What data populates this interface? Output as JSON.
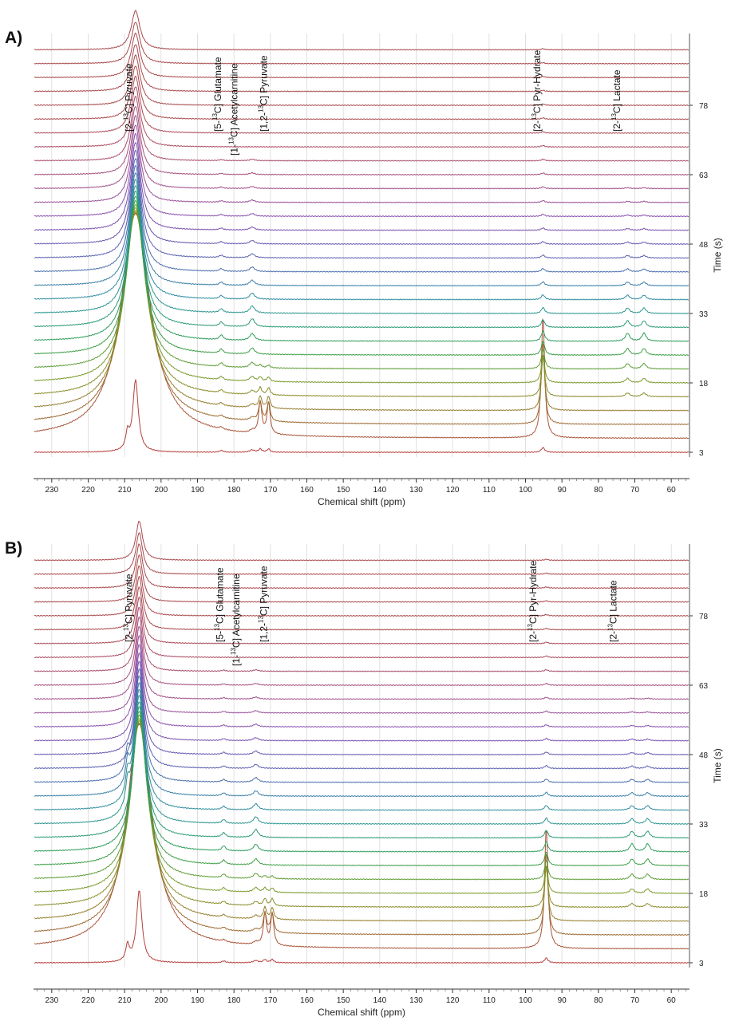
{
  "chart_data": [
    {
      "type": "line",
      "panel_label": "A)",
      "xlabel": "Chemical shift (ppm)",
      "ylabel": "Time (s)",
      "xlim": [
        235,
        55
      ],
      "x_reversed": true,
      "x_ticks": [
        230,
        220,
        210,
        200,
        190,
        180,
        170,
        160,
        150,
        140,
        130,
        120,
        110,
        100,
        90,
        80,
        70,
        60
      ],
      "y_ticks": [
        3,
        18,
        33,
        48,
        63,
        78
      ],
      "time_points_s": [
        3,
        6,
        9,
        12,
        15,
        18,
        21,
        24,
        27,
        30,
        33,
        36,
        39,
        42,
        45,
        48,
        51,
        54,
        57,
        60,
        63,
        66,
        69,
        72,
        75,
        78,
        81,
        84,
        87,
        90
      ],
      "grid": true,
      "annotations": [
        {
          "pre": "[2-",
          "sup": "13",
          "post": "C] Pyruvate",
          "ppm": 208
        },
        {
          "pre": "[5-",
          "sup": "13",
          "post": "C] Glutamate",
          "ppm": 183.5
        },
        {
          "pre": "[1-",
          "sup": "13",
          "post": "C] Acetylcarnitine",
          "ppm": 179
        },
        {
          "pre": "[1,2-",
          "sup": "13",
          "post": "C] Pyruvate",
          "ppm": 171
        },
        {
          "pre": "[2-",
          "sup": "13",
          "post": "C] Pyr-Hydrate",
          "ppm": 96
        },
        {
          "pre": "[2-",
          "sup": "13",
          "post": "C] Lactate",
          "ppm": 74
        }
      ],
      "peaks_ppm": {
        "pyruvate": 207,
        "pyruvate_shoulder": 209.2,
        "glutamate": 183.5,
        "acetylcarnitine": 175,
        "pyruvate_1_2_a": 172.8,
        "pyruvate_1_2_b": 170.5,
        "pyr_hydrate": 95.2,
        "lactate_a": 72,
        "lactate_b": 67.5
      },
      "colors": [
        "#b5403d",
        "#a8553a",
        "#9e6a32",
        "#957e2e",
        "#8a8d2a",
        "#7a9a2c",
        "#5d9d36",
        "#3e9f46",
        "#2f9d5c",
        "#2b9a77",
        "#2b958f",
        "#2f8c9f",
        "#3a7fa7",
        "#4a6fae",
        "#5a60b0",
        "#6a56b0",
        "#7a52b0",
        "#8a50ae",
        "#985099",
        "#a0508a",
        "#a64f7c",
        "#a94d6e",
        "#aa4b62",
        "#aa4a56",
        "#a8494c"
      ]
    },
    {
      "type": "line",
      "panel_label": "B)",
      "xlabel": "Chemical shift (ppm)",
      "ylabel": "Time (s)",
      "xlim": [
        235,
        55
      ],
      "x_reversed": true,
      "x_ticks": [
        230,
        220,
        210,
        200,
        190,
        180,
        170,
        160,
        150,
        140,
        130,
        120,
        110,
        100,
        90,
        80,
        70,
        60
      ],
      "y_ticks": [
        3,
        18,
        33,
        48,
        63,
        78
      ],
      "time_points_s": [
        3,
        6,
        9,
        12,
        15,
        18,
        21,
        24,
        27,
        30,
        33,
        36,
        39,
        42,
        45,
        48,
        51,
        54,
        57,
        60,
        63,
        66,
        69,
        72,
        75,
        78,
        81,
        84,
        87,
        90
      ],
      "grid": true,
      "annotations": [
        {
          "pre": "[2-",
          "sup": "13",
          "post": "C] Pyruvate",
          "ppm": 208
        },
        {
          "pre": "[5-",
          "sup": "13",
          "post": "C] Glutamate",
          "ppm": 183
        },
        {
          "pre": "[1-",
          "sup": "13",
          "post": "C] Acetylcarnitine",
          "ppm": 178.5
        },
        {
          "pre": "[1,2-",
          "sup": "13",
          "post": "C] Pyruvate",
          "ppm": 171
        },
        {
          "pre": "[2-",
          "sup": "13",
          "post": "C] Pyr-Hydrate",
          "ppm": 97
        },
        {
          "pre": "[2-",
          "sup": "13",
          "post": "C] Lactate",
          "ppm": 75
        }
      ],
      "peaks_ppm": {
        "pyruvate": 206,
        "pyruvate_shoulder": 209.2,
        "glutamate": 182.8,
        "acetylcarnitine": 174,
        "pyruvate_1_2_a": 171.5,
        "pyruvate_1_2_b": 169.5,
        "pyr_hydrate": 94.3,
        "lactate_a": 70.8,
        "lactate_b": 66.5
      },
      "colors": [
        "#b5403d",
        "#a8553a",
        "#9e6a32",
        "#957e2e",
        "#8a8d2a",
        "#7a9a2c",
        "#5d9d36",
        "#3e9f46",
        "#2f9d5c",
        "#2b9a77",
        "#2b958f",
        "#2f8c9f",
        "#3a7fa7",
        "#4a6fae",
        "#5a60b0",
        "#6a56b0",
        "#7a52b0",
        "#8a50ae",
        "#985099",
        "#a0508a",
        "#a64f7c",
        "#a94d6e",
        "#aa4b62",
        "#aa4a56",
        "#a8494c"
      ]
    }
  ]
}
